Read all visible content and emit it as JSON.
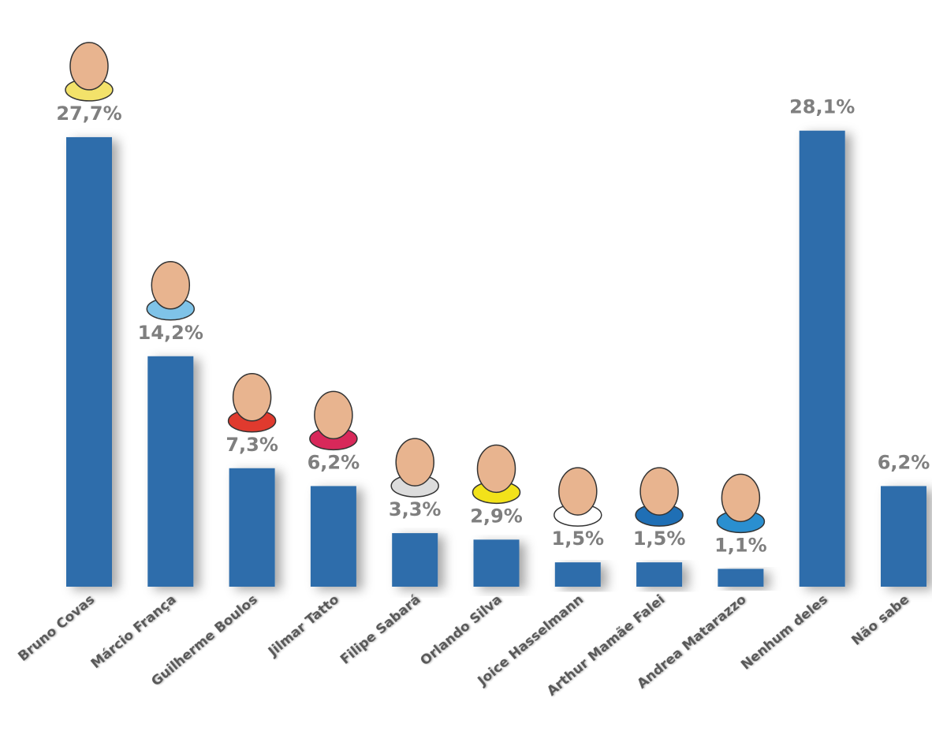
{
  "chart_data": {
    "type": "bar",
    "categories": [
      "Bruno Covas",
      "Márcio França",
      "Guilherme Boulos",
      "Jilmar Tatto",
      "Filipe Sabará",
      "Orlando Silva",
      "Joice Hasselmann",
      "Arthur Mamãe Falei",
      "Andrea Matarazzo",
      "Nenhum deles",
      "Não sabe"
    ],
    "values": [
      27.7,
      14.2,
      7.3,
      6.2,
      3.3,
      2.9,
      1.5,
      1.5,
      1.1,
      28.1,
      6.2
    ],
    "value_labels": [
      "27,7%",
      "14,2%",
      "7,3%",
      "6,2%",
      "3,3%",
      "2,9%",
      "1,5%",
      "1,5%",
      "1,1%",
      "28,1%",
      "6,2%"
    ],
    "color": "#2e6dab"
  }
}
